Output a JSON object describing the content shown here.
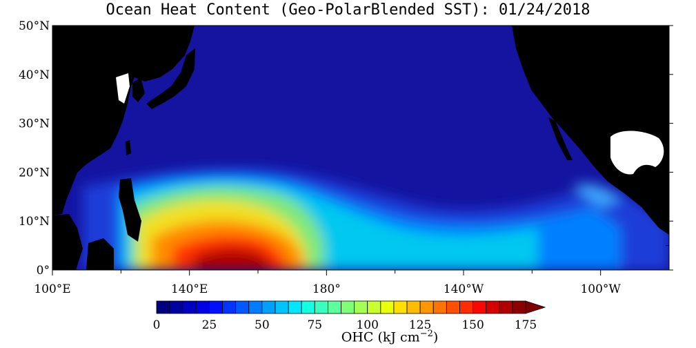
{
  "title": "Ocean Heat Content (Geo-PolarBlended SST): 01/24/2018",
  "map": {
    "lon_range": [
      100,
      280
    ],
    "lat_range": [
      0,
      50
    ],
    "lat_ticks": [
      {
        "value": 0,
        "label": "0°"
      },
      {
        "value": 10,
        "label": "10°N"
      },
      {
        "value": 20,
        "label": "20°N"
      },
      {
        "value": 30,
        "label": "30°N"
      },
      {
        "value": 40,
        "label": "40°N"
      },
      {
        "value": 50,
        "label": "50°N"
      }
    ],
    "lon_ticks": [
      {
        "value": 100,
        "label": "100°E"
      },
      {
        "value": 140,
        "label": "140°E"
      },
      {
        "value": 180,
        "label": "180°"
      },
      {
        "value": 220,
        "label": "140°W"
      },
      {
        "value": 260,
        "label": "100°W"
      }
    ],
    "colors": {
      "ocean_base": "#1414a0",
      "land": "#000000",
      "lakes": "#ffffff"
    }
  },
  "colorbar": {
    "title": "OHC (kJ cm",
    "title_sup": "−2",
    "title_end": ")",
    "min": 0,
    "max": 175,
    "ticks": [
      "0",
      "25",
      "50",
      "75",
      "100",
      "125",
      "150",
      "175"
    ],
    "palette": [
      "#00007f",
      "#0000a0",
      "#0000c4",
      "#0000e6",
      "#0010ff",
      "#0034ff",
      "#0058ff",
      "#007cff",
      "#00a0ff",
      "#00c4ff",
      "#00e8ff",
      "#14ffe2",
      "#38ffbe",
      "#5cff9a",
      "#80ff76",
      "#a4ff52",
      "#c8ff2e",
      "#ecff0a",
      "#ffe000",
      "#ffbc00",
      "#ff9800",
      "#ff7400",
      "#ff5000",
      "#ff2c00",
      "#f80800",
      "#d40000",
      "#b00000",
      "#8c0000"
    ],
    "extend_color": "#800000"
  }
}
